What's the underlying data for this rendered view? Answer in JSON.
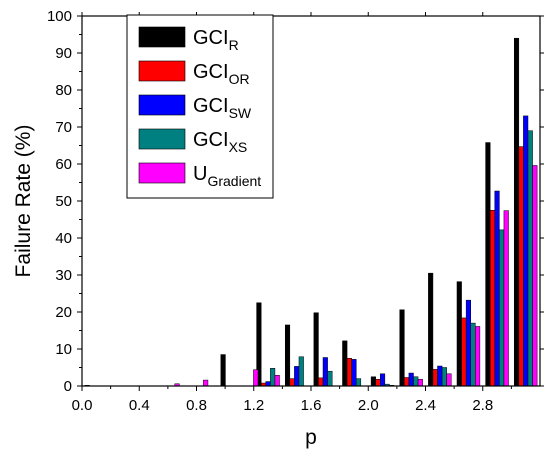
{
  "chart_data": {
    "type": "bar",
    "xlabel": "p",
    "ylabel": "Failure Rate (%)",
    "xlim": [
      0.0,
      3.2
    ],
    "ylim": [
      0,
      100
    ],
    "x_ticks": [
      "0.0",
      "0.4",
      "0.8",
      "1.2",
      "1.6",
      "2.0",
      "2.4",
      "2.8"
    ],
    "y_ticks": [
      "0",
      "10",
      "20",
      "30",
      "40",
      "50",
      "60",
      "70",
      "80",
      "90",
      "100"
    ],
    "grid": false,
    "legend_position": "top-left",
    "categories": [
      0.1,
      0.2,
      0.3,
      0.4,
      0.5,
      0.6,
      0.7,
      0.8,
      0.9,
      1.0,
      1.1,
      1.2,
      1.3,
      1.4,
      1.5,
      1.6,
      1.7,
      1.8,
      1.9,
      2.0,
      2.1,
      2.2,
      2.3,
      2.4,
      2.5,
      2.6,
      2.7,
      2.8,
      2.9,
      3.0
    ],
    "series": [
      {
        "name": "GCI",
        "name_subscript": "R",
        "color": "#000000",
        "values": [
          0.2,
          0,
          0,
          0,
          0,
          0,
          0,
          0,
          0,
          0,
          0,
          0,
          0,
          0,
          0,
          8.5,
          22.5,
          16.5,
          19.8,
          12.2,
          2.5,
          1.0,
          20.6,
          30.5,
          28.2,
          65.8,
          94.0,
          0,
          0,
          0
        ]
      },
      {
        "name": "GCI",
        "name_subscript": "OR",
        "color": "#ff0000",
        "values": [
          0,
          0,
          0,
          0,
          0,
          0,
          0,
          0,
          0,
          0,
          0,
          0,
          0,
          0,
          0,
          0,
          0.8,
          2.0,
          2.2,
          7.5,
          1.8,
          0.3,
          2.3,
          4.5,
          18.4,
          47.5,
          64.7,
          0,
          0,
          0
        ]
      },
      {
        "name": "GCI",
        "name_subscript": "SW",
        "color": "#0000ff",
        "values": [
          0,
          0,
          0,
          0,
          0,
          0,
          0,
          0,
          0,
          0,
          0,
          0,
          0,
          0,
          0,
          0,
          1.2,
          5.3,
          7.7,
          7.2,
          3.3,
          0.5,
          3.5,
          5.4,
          23.2,
          52.7,
          73.0,
          0,
          0,
          0
        ]
      },
      {
        "name": "GCI",
        "name_subscript": "XS",
        "color": "#008080",
        "values": [
          0,
          0,
          0,
          0,
          0,
          0,
          0,
          0,
          0,
          0,
          0,
          0,
          0,
          0,
          0,
          0.1,
          4.8,
          7.9,
          4.0,
          2.0,
          0.5,
          0.2,
          2.5,
          5.0,
          17.0,
          42.2,
          69.0,
          0,
          0,
          0
        ]
      },
      {
        "name": "U",
        "name_subscript": "Gradient",
        "color": "#ff00ff",
        "values": [
          0,
          0,
          0,
          0,
          0,
          0.6,
          0.2,
          1.6,
          0,
          0,
          0,
          4.4,
          2.9,
          0,
          0,
          0,
          0,
          0,
          0,
          0,
          0.2,
          0,
          1.8,
          3.3,
          16.1,
          47.4,
          59.6,
          0,
          0,
          0
        ]
      }
    ],
    "bar_groups_x": [
      0.1,
      0.6,
      0.8,
      1.05,
      1.15,
      1.3,
      1.5,
      1.7,
      1.9,
      2.1,
      2.3,
      2.5,
      2.7,
      2.9,
      3.1
    ],
    "bars": {
      "GCI_R": [
        0.2,
        0,
        0,
        8.5,
        0,
        22.5,
        16.5,
        19.8,
        12.2,
        2.5,
        20.6,
        30.5,
        28.2,
        65.8,
        94.0
      ],
      "GCI_OR": [
        0,
        0,
        0,
        0,
        0,
        0.8,
        2.0,
        2.2,
        7.5,
        1.8,
        2.3,
        4.5,
        18.4,
        47.5,
        64.7
      ],
      "GCI_SW": [
        0,
        0,
        0,
        0,
        0,
        1.2,
        5.3,
        7.7,
        7.2,
        3.3,
        3.5,
        5.4,
        23.2,
        52.7,
        73.0
      ],
      "GCI_XS": [
        0,
        0,
        0,
        0,
        0,
        4.8,
        7.9,
        4.0,
        2.0,
        0.5,
        2.5,
        5.0,
        17.0,
        42.2,
        69.0
      ],
      "U_Gradient": [
        0,
        0.6,
        1.6,
        0,
        4.4,
        2.9,
        0,
        0,
        0,
        0.2,
        1.8,
        3.3,
        16.1,
        47.4,
        59.6
      ]
    }
  }
}
